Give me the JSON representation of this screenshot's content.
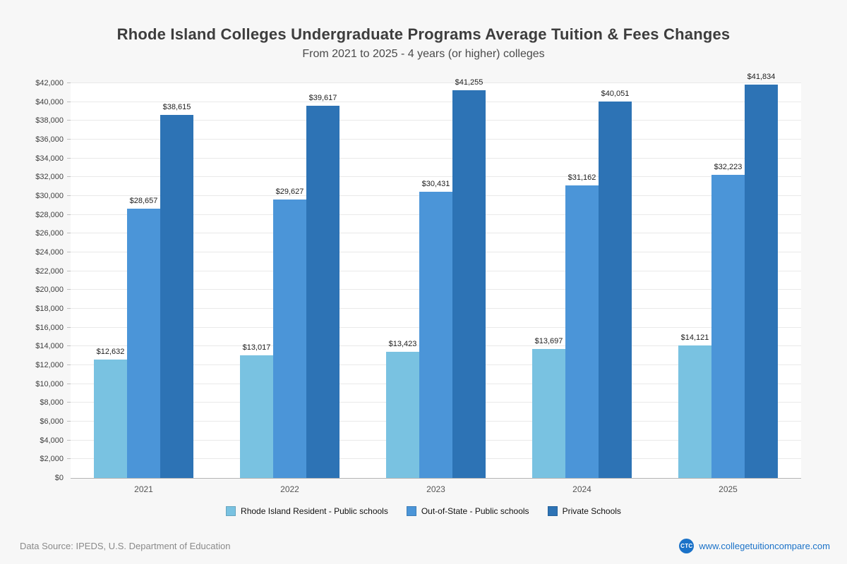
{
  "header": {
    "title": "Rhode Island Colleges Undergraduate Programs Average Tuition & Fees Changes",
    "subtitle": "From 2021 to 2025 - 4 years (or higher) colleges"
  },
  "chart_data": {
    "type": "bar",
    "title": "Rhode Island Colleges Undergraduate Programs Average Tuition & Fees Changes",
    "subtitle": "From 2021 to 2025 - 4 years (or higher) colleges",
    "categories": [
      "2021",
      "2022",
      "2023",
      "2024",
      "2025"
    ],
    "series": [
      {
        "name": "Rhode Island Resident - Public schools",
        "color": "#79c2e1",
        "values": [
          12632,
          13017,
          13423,
          13697,
          14121
        ]
      },
      {
        "name": "Out-of-State - Public schools",
        "color": "#4b95d8",
        "values": [
          28657,
          29627,
          30431,
          31162,
          32223
        ]
      },
      {
        "name": "Private Schools",
        "color": "#2d73b5",
        "values": [
          38615,
          39617,
          41255,
          40051,
          41834
        ]
      }
    ],
    "xlabel": "",
    "ylabel": "",
    "ylim": [
      0,
      42000
    ],
    "y_tick_step": 2000,
    "grid": true,
    "legend_position": "bottom",
    "value_label_prefix": "$"
  },
  "footer": {
    "source": "Data Source: IPEDS, U.S. Department of Education",
    "logo_text": "CTC",
    "logo_color": "#1b72c8",
    "website": "www.collegetuitioncompare.com",
    "website_color": "#1b72c8"
  }
}
